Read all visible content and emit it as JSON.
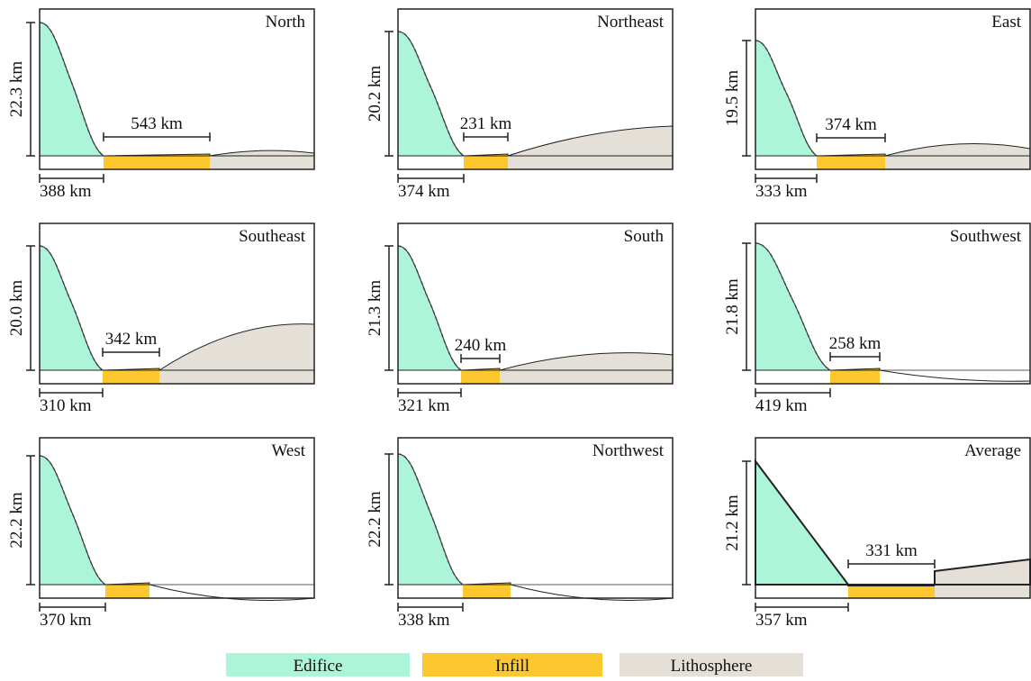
{
  "panels": [
    {
      "title": "North",
      "height": "22.3 km",
      "edifice": "388 km",
      "infill": "543 km"
    },
    {
      "title": "Northeast",
      "height": "20.2 km",
      "edifice": "374 km",
      "infill": "231 km"
    },
    {
      "title": "East",
      "height": "19.5 km",
      "edifice": "333 km",
      "infill": "374 km"
    },
    {
      "title": "Southeast",
      "height": "20.0 km",
      "edifice": "310 km",
      "infill": "342 km"
    },
    {
      "title": "South",
      "height": "21.3 km",
      "edifice": "321 km",
      "infill": "240 km"
    },
    {
      "title": "Southwest",
      "height": "21.8 km",
      "edifice": "419 km",
      "infill": "258 km"
    },
    {
      "title": "West",
      "height": "22.2 km",
      "edifice": "370 km"
    },
    {
      "title": "Northwest",
      "height": "22.2 km",
      "edifice": "338 km"
    },
    {
      "title": "Average",
      "height": "21.2 km",
      "edifice": "357 km",
      "infill": "331 km"
    }
  ],
  "legend": [
    "Edifice",
    "Infill",
    "Lithosphere"
  ]
}
